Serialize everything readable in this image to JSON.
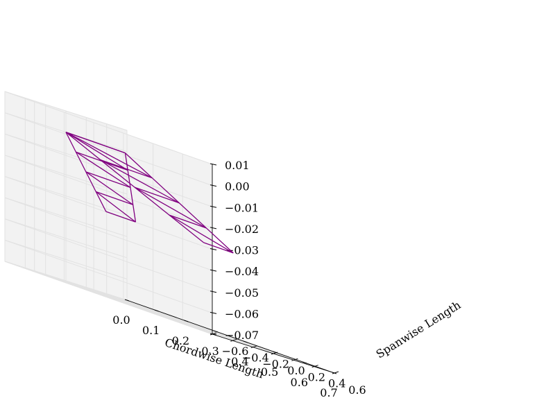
{
  "chart_data": {
    "type": "wireframe-3d",
    "title": "",
    "xlabel": "Chordwise Length",
    "ylabel": "Spanwise Length",
    "zlabel": "",
    "xlim": [
      0.0,
      0.7
    ],
    "ylim": [
      -0.6,
      0.6
    ],
    "zlim": [
      -0.07,
      0.01
    ],
    "xticks": [
      "0.0",
      "0.1",
      "0.2",
      "0.3",
      "0.4",
      "0.5",
      "0.6",
      "0.7"
    ],
    "yticks": [
      "−0.6",
      "−0.4",
      "−0.2",
      "0.0",
      "0.2",
      "0.4",
      "0.6"
    ],
    "zticks": [
      "0.01",
      "0.00",
      "−0.01",
      "−0.02",
      "−0.03",
      "−0.04",
      "−0.05",
      "−0.06",
      "−0.07"
    ],
    "grid": true,
    "colors": {
      "wireframe": "#800080"
    },
    "series": [
      {
        "leading_edge": [
          [
            0.0,
            0.0
          ],
          [
            0.075,
            -0.12
          ],
          [
            0.15,
            -0.24
          ],
          [
            0.225,
            -0.36
          ],
          [
            0.3,
            -0.48
          ]
        ],
        "trailing_edge": [
          [
            0.2,
            0.0
          ],
          [
            0.25,
            -0.12
          ],
          [
            0.3,
            -0.24
          ],
          [
            0.35,
            -0.36
          ],
          [
            0.4,
            -0.48
          ]
        ]
      },
      {
        "leading_edge": [
          [
            0.0,
            0.0
          ],
          [
            0.075,
            0.12
          ],
          [
            0.15,
            0.24
          ],
          [
            0.225,
            0.36
          ],
          [
            0.3,
            0.48
          ]
        ],
        "trailing_edge": [
          [
            0.2,
            0.0
          ],
          [
            0.25,
            0.12
          ],
          [
            0.3,
            0.24
          ],
          [
            0.35,
            0.36
          ],
          [
            0.4,
            0.48
          ]
        ]
      }
    ],
    "z_values": [
      0.0,
      -0.0075,
      -0.015,
      -0.0225,
      -0.03
    ]
  }
}
